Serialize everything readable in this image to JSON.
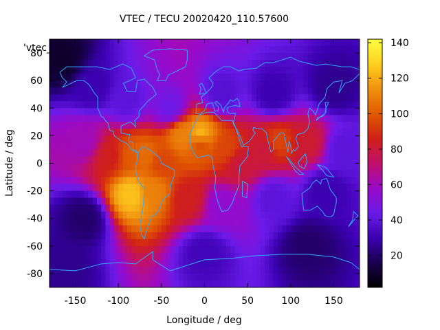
{
  "chart_data": {
    "type": "heatmap",
    "title": "VTEC / TECU 20020420_110.57600",
    "xlabel": "Longitude / deg",
    "ylabel": "Latitude / deg",
    "legend_entry": "'vtec_",
    "xlim": [
      -180,
      180
    ],
    "ylim": [
      -90,
      90
    ],
    "x_ticks": [
      -150,
      -100,
      -50,
      0,
      50,
      100,
      150
    ],
    "y_ticks": [
      -80,
      -60,
      -40,
      -20,
      0,
      20,
      40,
      60,
      80
    ],
    "colorbar": {
      "range": [
        2,
        142
      ],
      "ticks": [
        20,
        40,
        60,
        80,
        100,
        120,
        140
      ],
      "palette": [
        "#000000",
        "#1a0050",
        "#3b00b0",
        "#6a1be8",
        "#9a0ac8",
        "#c0106a",
        "#d02018",
        "#e05a00",
        "#f09010",
        "#ffd020",
        "#ffff40"
      ]
    },
    "regions": [
      {
        "lon": -165,
        "lat": 75,
        "value": 10
      },
      {
        "lon": -130,
        "lat": 55,
        "value": 30
      },
      {
        "lon": -90,
        "lat": 45,
        "value": 40
      },
      {
        "lon": -40,
        "lat": 40,
        "value": 45
      },
      {
        "lon": 20,
        "lat": 50,
        "value": 38
      },
      {
        "lon": 80,
        "lat": 50,
        "value": 30
      },
      {
        "lon": 150,
        "lat": 55,
        "value": 25
      },
      {
        "lon": -140,
        "lat": 15,
        "value": 60
      },
      {
        "lon": -110,
        "lat": 5,
        "value": 85
      },
      {
        "lon": -85,
        "lat": 5,
        "value": 100
      },
      {
        "lon": -70,
        "lat": 5,
        "value": 105
      },
      {
        "lon": -60,
        "lat": -20,
        "value": 110
      },
      {
        "lon": -85,
        "lat": -22,
        "value": 125
      },
      {
        "lon": -50,
        "lat": 0,
        "value": 95
      },
      {
        "lon": -25,
        "lat": 20,
        "value": 110
      },
      {
        "lon": -5,
        "lat": 15,
        "value": 95
      },
      {
        "lon": -5,
        "lat": 20,
        "value": 125
      },
      {
        "lon": 25,
        "lat": 10,
        "value": 95
      },
      {
        "lon": 40,
        "lat": 0,
        "value": 80
      },
      {
        "lon": 70,
        "lat": 10,
        "value": 80
      },
      {
        "lon": 85,
        "lat": 15,
        "value": 95
      },
      {
        "lon": 120,
        "lat": 15,
        "value": 82
      },
      {
        "lon": 160,
        "lat": 10,
        "value": 40
      },
      {
        "lon": -20,
        "lat": -25,
        "value": 85
      },
      {
        "lon": 20,
        "lat": -30,
        "value": 55
      },
      {
        "lon": 80,
        "lat": -25,
        "value": 40
      },
      {
        "lon": 140,
        "lat": -20,
        "value": 30
      },
      {
        "lon": -140,
        "lat": -40,
        "value": 20
      },
      {
        "lon": -160,
        "lat": -75,
        "value": 25
      },
      {
        "lon": 0,
        "lat": -65,
        "value": 32
      },
      {
        "lon": 120,
        "lat": -60,
        "value": 20
      }
    ]
  }
}
